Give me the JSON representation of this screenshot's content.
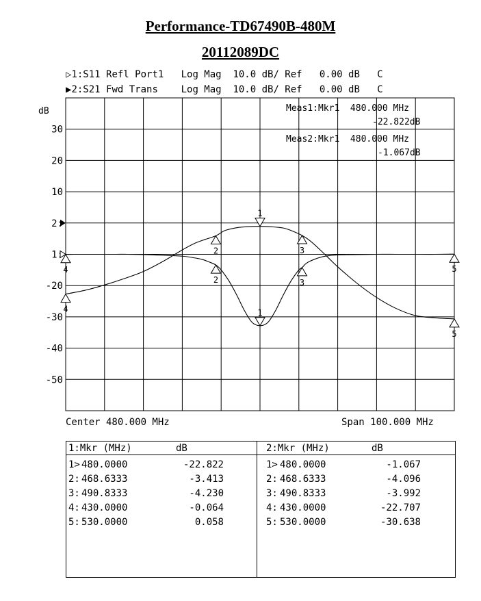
{
  "title": "Performance-TD67490B-480M",
  "subtitle": "20112089DC",
  "traces_header": [
    {
      "marker_glyph": "▷",
      "text": "1:S11 Refl Port1   Log Mag  10.0 dB/ Ref   0.00 dB   C"
    },
    {
      "marker_glyph": "▶",
      "text": "2:S21 Fwd Trans    Log Mag  10.0 dB/ Ref   0.00 dB   C"
    }
  ],
  "readouts": [
    {
      "line1": "Meas1:Mkr1  480.000 MHz",
      "line2": "-22.822dB"
    },
    {
      "line1": "Meas2:Mkr1  480.000 MHz",
      "line2": "-1.067dB"
    }
  ],
  "footer": {
    "center": "Center 480.000 MHz",
    "span": "Span 100.000 MHz"
  },
  "chart_data": {
    "type": "line",
    "ylabel": "dB",
    "x_range_mhz": [
      430,
      530
    ],
    "y_scale_db_per_div": 10,
    "reference_db": 0,
    "y_tick_labels": [
      "30",
      "20",
      "10",
      "2:",
      "1:",
      "-20",
      "-30",
      "-40",
      "-50"
    ],
    "series": [
      {
        "name": "S11",
        "marker_labels": [
          "1",
          "2",
          "3",
          "4",
          "5"
        ],
        "x": [
          430,
          432,
          435,
          438,
          440,
          443,
          446,
          450,
          455,
          460,
          462,
          465,
          467,
          468.6333,
          470,
          472,
          474,
          476,
          478,
          480,
          482,
          484,
          486,
          488,
          490,
          490.8333,
          492,
          494,
          496,
          498,
          500,
          505,
          510,
          515,
          520,
          525,
          530
        ],
        "y": [
          -0.064,
          0,
          0,
          0,
          0,
          0,
          0,
          -0.1,
          -0.3,
          -0.6,
          -0.9,
          -1.6,
          -2.5,
          -3.413,
          -5,
          -8.5,
          -13,
          -18,
          -21.8,
          -22.822,
          -21.8,
          -18,
          -13,
          -8.5,
          -5,
          -4.23,
          -2.8,
          -1.6,
          -0.8,
          -0.4,
          -0.2,
          -0.1,
          0,
          0,
          0,
          0,
          0.058
        ]
      },
      {
        "name": "S21",
        "marker_labels": [
          "1",
          "2",
          "3",
          "4",
          "5"
        ],
        "x": [
          430,
          435,
          440,
          445,
          450,
          455,
          460,
          463,
          466,
          468.6333,
          471,
          474,
          477,
          480,
          483,
          486,
          488,
          490.8333,
          493,
          496,
          500,
          505,
          510,
          515,
          520,
          525,
          530
        ],
        "y": [
          -22.707,
          -21.5,
          -19.8,
          -17.8,
          -15.5,
          -12.3,
          -8.6,
          -6.6,
          -5.2,
          -4.096,
          -2.4,
          -1.5,
          -1.15,
          -1.067,
          -1.2,
          -1.6,
          -2.4,
          -3.992,
          -5.8,
          -9.2,
          -14,
          -19.3,
          -23.8,
          -27.3,
          -29.6,
          -30.3,
          -30.638
        ]
      }
    ]
  },
  "marker_tables": [
    {
      "header_left": "1:Mkr (MHz)",
      "header_right": "dB",
      "rows": [
        {
          "id": "1>",
          "freq": "480.0000",
          "val": "-22.822"
        },
        {
          "id": "2:",
          "freq": "468.6333",
          "val": "-3.413"
        },
        {
          "id": "3:",
          "freq": "490.8333",
          "val": "-4.230"
        },
        {
          "id": "4:",
          "freq": "430.0000",
          "val": "-0.064"
        },
        {
          "id": "5:",
          "freq": "530.0000",
          "val": "0.058"
        }
      ]
    },
    {
      "header_left": "2:Mkr (MHz)",
      "header_right": "dB",
      "rows": [
        {
          "id": "1>",
          "freq": "480.0000",
          "val": "-1.067"
        },
        {
          "id": "2:",
          "freq": "468.6333",
          "val": "-4.096"
        },
        {
          "id": "3:",
          "freq": "490.8333",
          "val": "-3.992"
        },
        {
          "id": "4:",
          "freq": "430.0000",
          "val": "-22.707"
        },
        {
          "id": "5:",
          "freq": "530.0000",
          "val": "-30.638"
        }
      ]
    }
  ]
}
